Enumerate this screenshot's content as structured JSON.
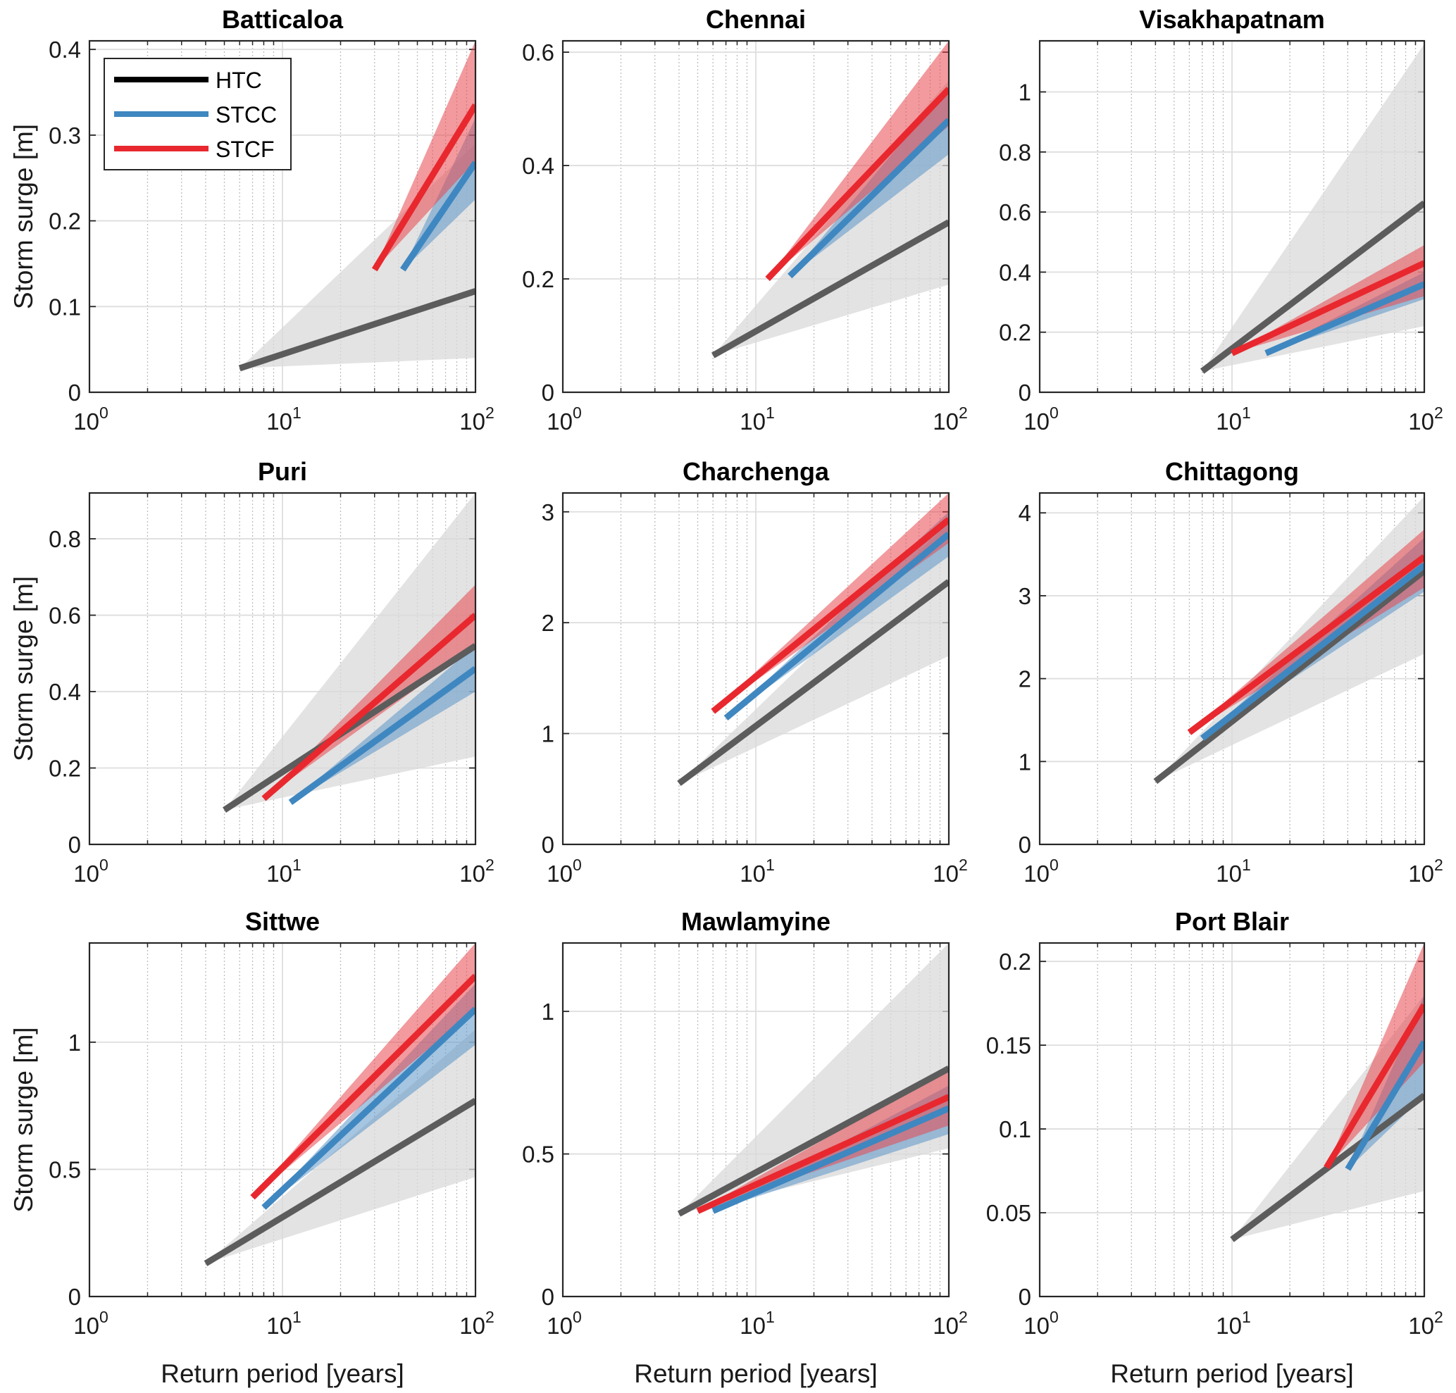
{
  "chart_data": {
    "type": "line",
    "layout": "3x3 small multiples",
    "shared_xlabel": "Return period [years]",
    "shared_ylabel": "Storm surge [m]",
    "xscale": "log",
    "xlim": [
      1,
      100
    ],
    "xticks": [
      1,
      10,
      100
    ],
    "xtick_labels": [
      {
        "base": "10",
        "exp": "0"
      },
      {
        "base": "10",
        "exp": "1"
      },
      {
        "base": "10",
        "exp": "2"
      }
    ],
    "grid": true,
    "legend": {
      "placement": "top-left of first panel",
      "entries": [
        {
          "name": "HTC",
          "color": "#000000"
        },
        {
          "name": "STCC",
          "color": "#3f87c0"
        },
        {
          "name": "STCF",
          "color": "#e8282e"
        }
      ]
    },
    "series_colors": {
      "HTC": {
        "line": "#5c5c5c",
        "band": "#d9d9d9"
      },
      "STCC": {
        "line": "#3f87c0",
        "band": "#5b95c8"
      },
      "STCF": {
        "line": "#e8282e",
        "band": "#e8474f"
      }
    },
    "panels": [
      {
        "title": "Batticaloa",
        "ylim": [
          0,
          0.41
        ],
        "yticks": [
          0,
          0.1,
          0.2,
          0.3,
          0.4
        ],
        "ytick_labels": [
          "0",
          "0.1",
          "0.2",
          "0.3",
          "0.4"
        ],
        "series": [
          {
            "name": "HTC",
            "x": [
              6,
              100
            ],
            "y": [
              0.028,
              0.118
            ],
            "band_lower": [
              0.028,
              0.04
            ],
            "band_upper": [
              0.028,
              0.29
            ]
          },
          {
            "name": "STCC",
            "x": [
              42,
              100
            ],
            "y": [
              0.143,
              0.268
            ],
            "band_lower": [
              0.143,
              0.225
            ],
            "band_upper": [
              0.143,
              0.32
            ]
          },
          {
            "name": "STCF",
            "x": [
              30,
              100
            ],
            "y": [
              0.143,
              0.335
            ],
            "band_lower": [
              0.143,
              0.27
            ],
            "band_upper": [
              0.143,
              0.41
            ]
          }
        ]
      },
      {
        "title": "Chennai",
        "ylim": [
          0,
          0.62
        ],
        "yticks": [
          0,
          0.2,
          0.4,
          0.6
        ],
        "ytick_labels": [
          "0",
          "0.2",
          "0.4",
          "0.6"
        ],
        "series": [
          {
            "name": "HTC",
            "x": [
              6,
              100
            ],
            "y": [
              0.065,
              0.3
            ],
            "band_lower": [
              0.065,
              0.19
            ],
            "band_upper": [
              0.065,
              0.55
            ]
          },
          {
            "name": "STCC",
            "x": [
              15,
              100
            ],
            "y": [
              0.205,
              0.48
            ],
            "band_lower": [
              0.205,
              0.42
            ],
            "band_upper": [
              0.205,
              0.54
            ]
          },
          {
            "name": "STCF",
            "x": [
              11.5,
              100
            ],
            "y": [
              0.2,
              0.535
            ],
            "band_lower": [
              0.2,
              0.47
            ],
            "band_upper": [
              0.2,
              0.62
            ]
          }
        ]
      },
      {
        "title": "Visakhapatnam",
        "ylim": [
          0,
          1.17
        ],
        "yticks": [
          0,
          0.2,
          0.4,
          0.6,
          0.8,
          1
        ],
        "ytick_labels": [
          "0",
          "0.2",
          "0.4",
          "0.6",
          "0.8",
          "1"
        ],
        "series": [
          {
            "name": "HTC",
            "x": [
              7,
              100
            ],
            "y": [
              0.07,
              0.63
            ],
            "band_lower": [
              0.07,
              0.22
            ],
            "band_upper": [
              0.07,
              1.16
            ]
          },
          {
            "name": "STCC",
            "x": [
              15,
              100
            ],
            "y": [
              0.13,
              0.36
            ],
            "band_lower": [
              0.13,
              0.31
            ],
            "band_upper": [
              0.13,
              0.4
            ]
          },
          {
            "name": "STCF",
            "x": [
              10,
              100
            ],
            "y": [
              0.13,
              0.43
            ],
            "band_lower": [
              0.13,
              0.32
            ],
            "band_upper": [
              0.13,
              0.49
            ]
          }
        ]
      },
      {
        "title": "Puri",
        "ylim": [
          0,
          0.92
        ],
        "yticks": [
          0,
          0.2,
          0.4,
          0.6,
          0.8
        ],
        "ytick_labels": [
          "0",
          "0.2",
          "0.4",
          "0.6",
          "0.8"
        ],
        "series": [
          {
            "name": "HTC",
            "x": [
              5,
              100
            ],
            "y": [
              0.09,
              0.52
            ],
            "band_lower": [
              0.09,
              0.23
            ],
            "band_upper": [
              0.09,
              0.92
            ]
          },
          {
            "name": "STCC",
            "x": [
              11,
              100
            ],
            "y": [
              0.11,
              0.46
            ],
            "band_lower": [
              0.11,
              0.4
            ],
            "band_upper": [
              0.11,
              0.52
            ]
          },
          {
            "name": "STCF",
            "x": [
              8,
              100
            ],
            "y": [
              0.12,
              0.6
            ],
            "band_lower": [
              0.12,
              0.52
            ],
            "band_upper": [
              0.12,
              0.68
            ]
          }
        ]
      },
      {
        "title": "Charchenga",
        "ylim": [
          0,
          3.17
        ],
        "yticks": [
          0,
          1,
          2,
          3
        ],
        "ytick_labels": [
          "0",
          "1",
          "2",
          "3"
        ],
        "series": [
          {
            "name": "HTC",
            "x": [
              4,
              100
            ],
            "y": [
              0.55,
              2.37
            ],
            "band_lower": [
              0.55,
              1.7
            ],
            "band_upper": [
              0.55,
              2.9
            ]
          },
          {
            "name": "STCC",
            "x": [
              7,
              100
            ],
            "y": [
              1.14,
              2.8
            ],
            "band_lower": [
              1.14,
              2.6
            ],
            "band_upper": [
              1.14,
              3.0
            ]
          },
          {
            "name": "STCF",
            "x": [
              6,
              100
            ],
            "y": [
              1.2,
              2.93
            ],
            "band_lower": [
              1.2,
              2.72
            ],
            "band_upper": [
              1.2,
              3.17
            ]
          }
        ]
      },
      {
        "title": "Chittagong",
        "ylim": [
          0,
          4.24
        ],
        "yticks": [
          0,
          1,
          2,
          3,
          4
        ],
        "ytick_labels": [
          "0",
          "1",
          "2",
          "3",
          "4"
        ],
        "series": [
          {
            "name": "HTC",
            "x": [
              4,
              100
            ],
            "y": [
              0.76,
              3.3
            ],
            "band_lower": [
              0.76,
              2.3
            ],
            "band_upper": [
              0.76,
              4.2
            ]
          },
          {
            "name": "STCC",
            "x": [
              7,
              100
            ],
            "y": [
              1.28,
              3.37
            ],
            "band_lower": [
              1.28,
              3.05
            ],
            "band_upper": [
              1.28,
              3.7
            ]
          },
          {
            "name": "STCF",
            "x": [
              6,
              100
            ],
            "y": [
              1.35,
              3.47
            ],
            "band_lower": [
              1.35,
              3.1
            ],
            "band_upper": [
              1.35,
              3.8
            ]
          }
        ]
      },
      {
        "title": "Sittwe",
        "ylim": [
          0,
          1.39
        ],
        "yticks": [
          0,
          0.5,
          1
        ],
        "ytick_labels": [
          "0",
          "0.5",
          "1"
        ],
        "series": [
          {
            "name": "HTC",
            "x": [
              4,
              100
            ],
            "y": [
              0.13,
              0.77
            ],
            "band_lower": [
              0.13,
              0.47
            ],
            "band_upper": [
              0.13,
              1.05
            ]
          },
          {
            "name": "STCC",
            "x": [
              8,
              100
            ],
            "y": [
              0.35,
              1.13
            ],
            "band_lower": [
              0.35,
              0.99
            ],
            "band_upper": [
              0.35,
              1.23
            ]
          },
          {
            "name": "STCF",
            "x": [
              7,
              100
            ],
            "y": [
              0.39,
              1.26
            ],
            "band_lower": [
              0.39,
              1.13
            ],
            "band_upper": [
              0.39,
              1.39
            ]
          }
        ]
      },
      {
        "title": "Mawlamyine",
        "ylim": [
          0,
          1.24
        ],
        "yticks": [
          0,
          0.5,
          1
        ],
        "ytick_labels": [
          "0",
          "0.5",
          "1"
        ],
        "series": [
          {
            "name": "HTC",
            "x": [
              4,
              100
            ],
            "y": [
              0.29,
              0.8
            ],
            "band_lower": [
              0.29,
              0.52
            ],
            "band_upper": [
              0.29,
              1.24
            ]
          },
          {
            "name": "STCC",
            "x": [
              6,
              100
            ],
            "y": [
              0.3,
              0.66
            ],
            "band_lower": [
              0.3,
              0.57
            ],
            "band_upper": [
              0.3,
              0.74
            ]
          },
          {
            "name": "STCF",
            "x": [
              5,
              100
            ],
            "y": [
              0.3,
              0.7
            ],
            "band_lower": [
              0.3,
              0.6
            ],
            "band_upper": [
              0.3,
              0.8
            ]
          }
        ]
      },
      {
        "title": "Port Blair",
        "ylim": [
          0,
          0.211
        ],
        "yticks": [
          0,
          0.05,
          0.1,
          0.15,
          0.2
        ],
        "ytick_labels": [
          "0",
          "0.05",
          "0.1",
          "0.15",
          "0.2"
        ],
        "series": [
          {
            "name": "HTC",
            "x": [
              10,
              100
            ],
            "y": [
              0.034,
              0.12
            ],
            "band_lower": [
              0.034,
              0.063
            ],
            "band_upper": [
              0.034,
              0.18
            ]
          },
          {
            "name": "STCC",
            "x": [
              40,
              100
            ],
            "y": [
              0.076,
              0.152
            ],
            "band_lower": [
              0.076,
              0.12
            ],
            "band_upper": [
              0.076,
              0.18
            ]
          },
          {
            "name": "STCF",
            "x": [
              31,
              100
            ],
            "y": [
              0.077,
              0.174
            ],
            "band_lower": [
              0.077,
              0.14
            ],
            "band_upper": [
              0.077,
              0.211
            ]
          }
        ]
      }
    ]
  }
}
